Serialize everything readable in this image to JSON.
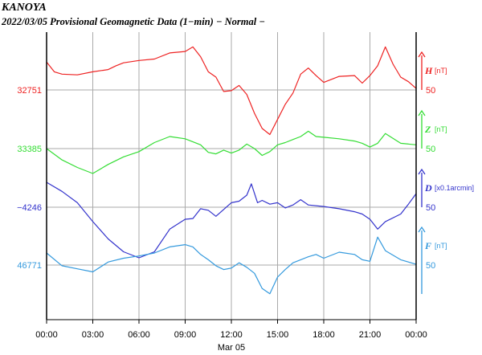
{
  "header": {
    "station": "KANOYA",
    "subtitle": "2022/03/05  Provisional Geomagnetic Data (1−min)  − Normal −"
  },
  "chart_data": {
    "type": "line",
    "x_ticks": [
      "00:00",
      "03:00",
      "06:00",
      "09:00",
      "12:00",
      "15:00",
      "18:00",
      "21:00",
      "00:00"
    ],
    "x_date_label": "Mar 05",
    "x_range_hours": [
      0,
      24
    ],
    "grid": true,
    "series": [
      {
        "name": "H",
        "unit": "[nT]",
        "baseline_label": "32751",
        "scale_label": "50",
        "color": "#ee2222",
        "baseline": 32751,
        "scale_nT": 50,
        "x": [
          0,
          0.5,
          1,
          2,
          3,
          4,
          4.5,
          5,
          6,
          7,
          8,
          9,
          9.5,
          10,
          10.5,
          11,
          11.5,
          12,
          12.5,
          13,
          13.5,
          14,
          14.5,
          15,
          15.5,
          16,
          16.5,
          17,
          17.5,
          18,
          19,
          20,
          20.5,
          21,
          21.5,
          22,
          22.5,
          23,
          23.5,
          24
        ],
        "y": [
          32788,
          32775,
          32772,
          32771,
          32775,
          32778,
          32783,
          32787,
          32790,
          32792,
          32800,
          32802,
          32808,
          32795,
          32775,
          32768,
          32749,
          32750,
          32757,
          32745,
          32720,
          32700,
          32692,
          32712,
          32732,
          32747,
          32772,
          32780,
          32770,
          32761,
          32769,
          32770,
          32760,
          32770,
          32783,
          32808,
          32785,
          32768,
          32762,
          32753
        ]
      },
      {
        "name": "Z",
        "unit": "[nT]",
        "baseline_label": "33385",
        "scale_label": "50",
        "color": "#33dd33",
        "baseline": 33385,
        "scale_nT": 50,
        "x": [
          0,
          1,
          2,
          3,
          4,
          5,
          6,
          7,
          8,
          9,
          10,
          10.5,
          11,
          11.5,
          12,
          12.5,
          13,
          13.5,
          14,
          14.5,
          15,
          15.5,
          16,
          16.5,
          17,
          17.5,
          18,
          19,
          20,
          20.5,
          21,
          21.5,
          22,
          23,
          24
        ],
        "y": [
          33385,
          33370,
          33360,
          33352,
          33364,
          33374,
          33381,
          33393,
          33401,
          33398,
          33390,
          33380,
          33378,
          33383,
          33379,
          33383,
          33391,
          33385,
          33376,
          33381,
          33390,
          33393,
          33397,
          33401,
          33408,
          33401,
          33400,
          33398,
          33395,
          33392,
          33387,
          33392,
          33405,
          33392,
          33390
        ]
      },
      {
        "name": "D",
        "unit": "[x0.1arcmin]",
        "baseline_label": "−4246",
        "scale_label": "50",
        "color": "#3333cc",
        "baseline": -4246,
        "scale_nT": 50,
        "x": [
          0,
          1,
          2,
          3,
          4,
          5,
          6,
          7,
          8,
          9,
          9.5,
          10,
          10.5,
          11,
          12,
          12.5,
          13,
          13.3,
          13.7,
          14,
          14.5,
          15,
          15.5,
          16,
          16.5,
          17,
          18,
          19,
          20,
          20.5,
          21,
          21.5,
          22,
          23,
          23.5,
          24
        ],
        "y": [
          -4213,
          -4225,
          -4240,
          -4265,
          -4288,
          -4305,
          -4313,
          -4305,
          -4275,
          -4262,
          -4261,
          -4248,
          -4250,
          -4258,
          -4240,
          -4238,
          -4230,
          -4215,
          -4240,
          -4237,
          -4242,
          -4240,
          -4247,
          -4243,
          -4236,
          -4243,
          -4245,
          -4248,
          -4252,
          -4255,
          -4262,
          -4275,
          -4265,
          -4255,
          -4242,
          -4228
        ]
      },
      {
        "name": "F",
        "unit": "[nT]",
        "baseline_label": "46771",
        "scale_label": "50",
        "color": "#3399dd",
        "baseline": 46771,
        "scale_nT": 50,
        "x": [
          0,
          1,
          2,
          3,
          4,
          5,
          6,
          7,
          8,
          9,
          9.5,
          10,
          10.5,
          11,
          11.5,
          12,
          12.5,
          13,
          13.5,
          14,
          14.5,
          15,
          15.5,
          16,
          16.5,
          17,
          17.5,
          18,
          19,
          20,
          20.5,
          21,
          21.5,
          22,
          23,
          24
        ],
        "y": [
          46787,
          46770,
          46766,
          46762,
          46775,
          46780,
          46783,
          46787,
          46795,
          46798,
          46795,
          46785,
          46778,
          46770,
          46765,
          46767,
          46774,
          46768,
          46760,
          46740,
          46733,
          46755,
          46765,
          46774,
          46778,
          46782,
          46785,
          46780,
          46788,
          46785,
          46778,
          46776,
          46808,
          46790,
          46778,
          46772
        ]
      }
    ]
  }
}
